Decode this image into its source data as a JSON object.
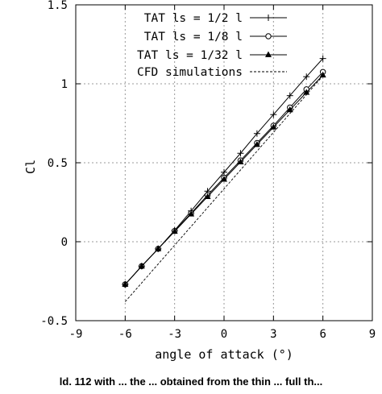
{
  "chart_data": {
    "type": "line",
    "xlabel": "angle of attack (°)",
    "ylabel": "Cl",
    "xlim": [
      -9,
      9
    ],
    "ylim": [
      -0.5,
      1.5
    ],
    "xticks": [
      -9,
      -6,
      -3,
      0,
      3,
      6,
      9
    ],
    "yticks": [
      -0.5,
      0,
      0.5,
      1,
      1.5
    ],
    "xtick_labels": [
      "-9",
      "-6",
      "-3",
      "0",
      "3",
      "6",
      "9"
    ],
    "ytick_labels": [
      "-0.5",
      "0",
      "0.5",
      "1",
      "1.5"
    ],
    "grid": true,
    "legend_position": "top-right",
    "series": [
      {
        "name": "TAT ls = 1/2 l",
        "marker": "plus",
        "x": [
          -6,
          -5,
          -4,
          -3,
          -2,
          -1,
          0,
          1,
          2,
          3,
          4,
          5,
          6
        ],
        "y": [
          -0.27,
          -0.155,
          -0.045,
          0.072,
          0.195,
          0.32,
          0.44,
          0.56,
          0.685,
          0.805,
          0.925,
          1.045,
          1.16
        ]
      },
      {
        "name": "TAT ls = 1/8 l",
        "marker": "circle",
        "x": [
          -6,
          -5,
          -4,
          -3,
          -2,
          -1,
          0,
          1,
          2,
          3,
          4,
          5,
          6
        ],
        "y": [
          -0.27,
          -0.155,
          -0.045,
          0.068,
          0.18,
          0.295,
          0.405,
          0.515,
          0.625,
          0.735,
          0.85,
          0.965,
          1.075
        ]
      },
      {
        "name": "TAT ls = 1/32 l",
        "marker": "triangle",
        "x": [
          -6,
          -5,
          -4,
          -3,
          -2,
          -1,
          0,
          1,
          2,
          3,
          4,
          5,
          6
        ],
        "y": [
          -0.27,
          -0.155,
          -0.045,
          0.065,
          0.175,
          0.285,
          0.395,
          0.505,
          0.615,
          0.725,
          0.835,
          0.945,
          1.055
        ]
      },
      {
        "name": "CFD simulations",
        "marker": "none",
        "dashed": true,
        "x": [
          -6,
          6
        ],
        "y": [
          -0.38,
          1.05
        ]
      }
    ]
  },
  "caption": "ld. 112 with ... the ... obtained from the thin ... full th..."
}
